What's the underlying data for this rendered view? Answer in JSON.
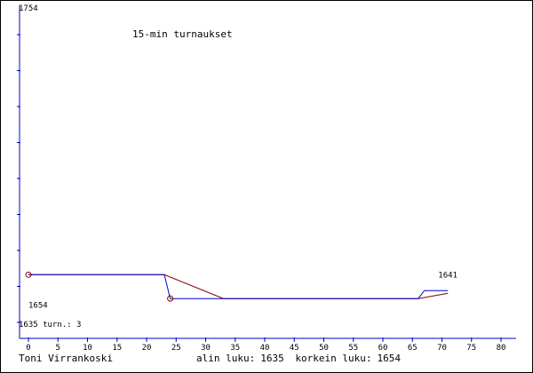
{
  "chart_data": {
    "type": "line",
    "title": "15-min turnaukset",
    "ylim": [
      1635,
      1754
    ],
    "xlim": [
      0,
      80
    ],
    "x_ticks": [
      0,
      5,
      10,
      15,
      20,
      25,
      30,
      35,
      40,
      45,
      50,
      55,
      60,
      65,
      70,
      75,
      80
    ],
    "y_top_label": "1754",
    "y_bottom_label": "1635",
    "turn_count_label": "turn.: 3",
    "grid": false,
    "series": [
      {
        "color": "#800000",
        "points": [
          [
            0,
            1654
          ],
          [
            23,
            1654
          ],
          [
            33,
            1645
          ],
          [
            66,
            1645
          ],
          [
            71,
            1647
          ]
        ]
      },
      {
        "color": "#0000cc",
        "points": [
          [
            0,
            1654
          ],
          [
            23,
            1654
          ],
          [
            24,
            1645
          ],
          [
            33,
            1645
          ],
          [
            66,
            1645
          ],
          [
            67,
            1648
          ],
          [
            71,
            1648
          ]
        ]
      }
    ],
    "markers": [
      {
        "x": 0,
        "y": 1654,
        "label": "1654",
        "label_pos": "below"
      },
      {
        "x": 24,
        "y": 1645
      }
    ],
    "annotations": [
      {
        "x": 71,
        "y": 1653,
        "text": "1641"
      }
    ]
  },
  "footer": {
    "author": "Toni Virrankoski",
    "min_label": "alin luku:",
    "min_value": "1635",
    "max_label": "korkein luku:",
    "max_value": "1654"
  }
}
